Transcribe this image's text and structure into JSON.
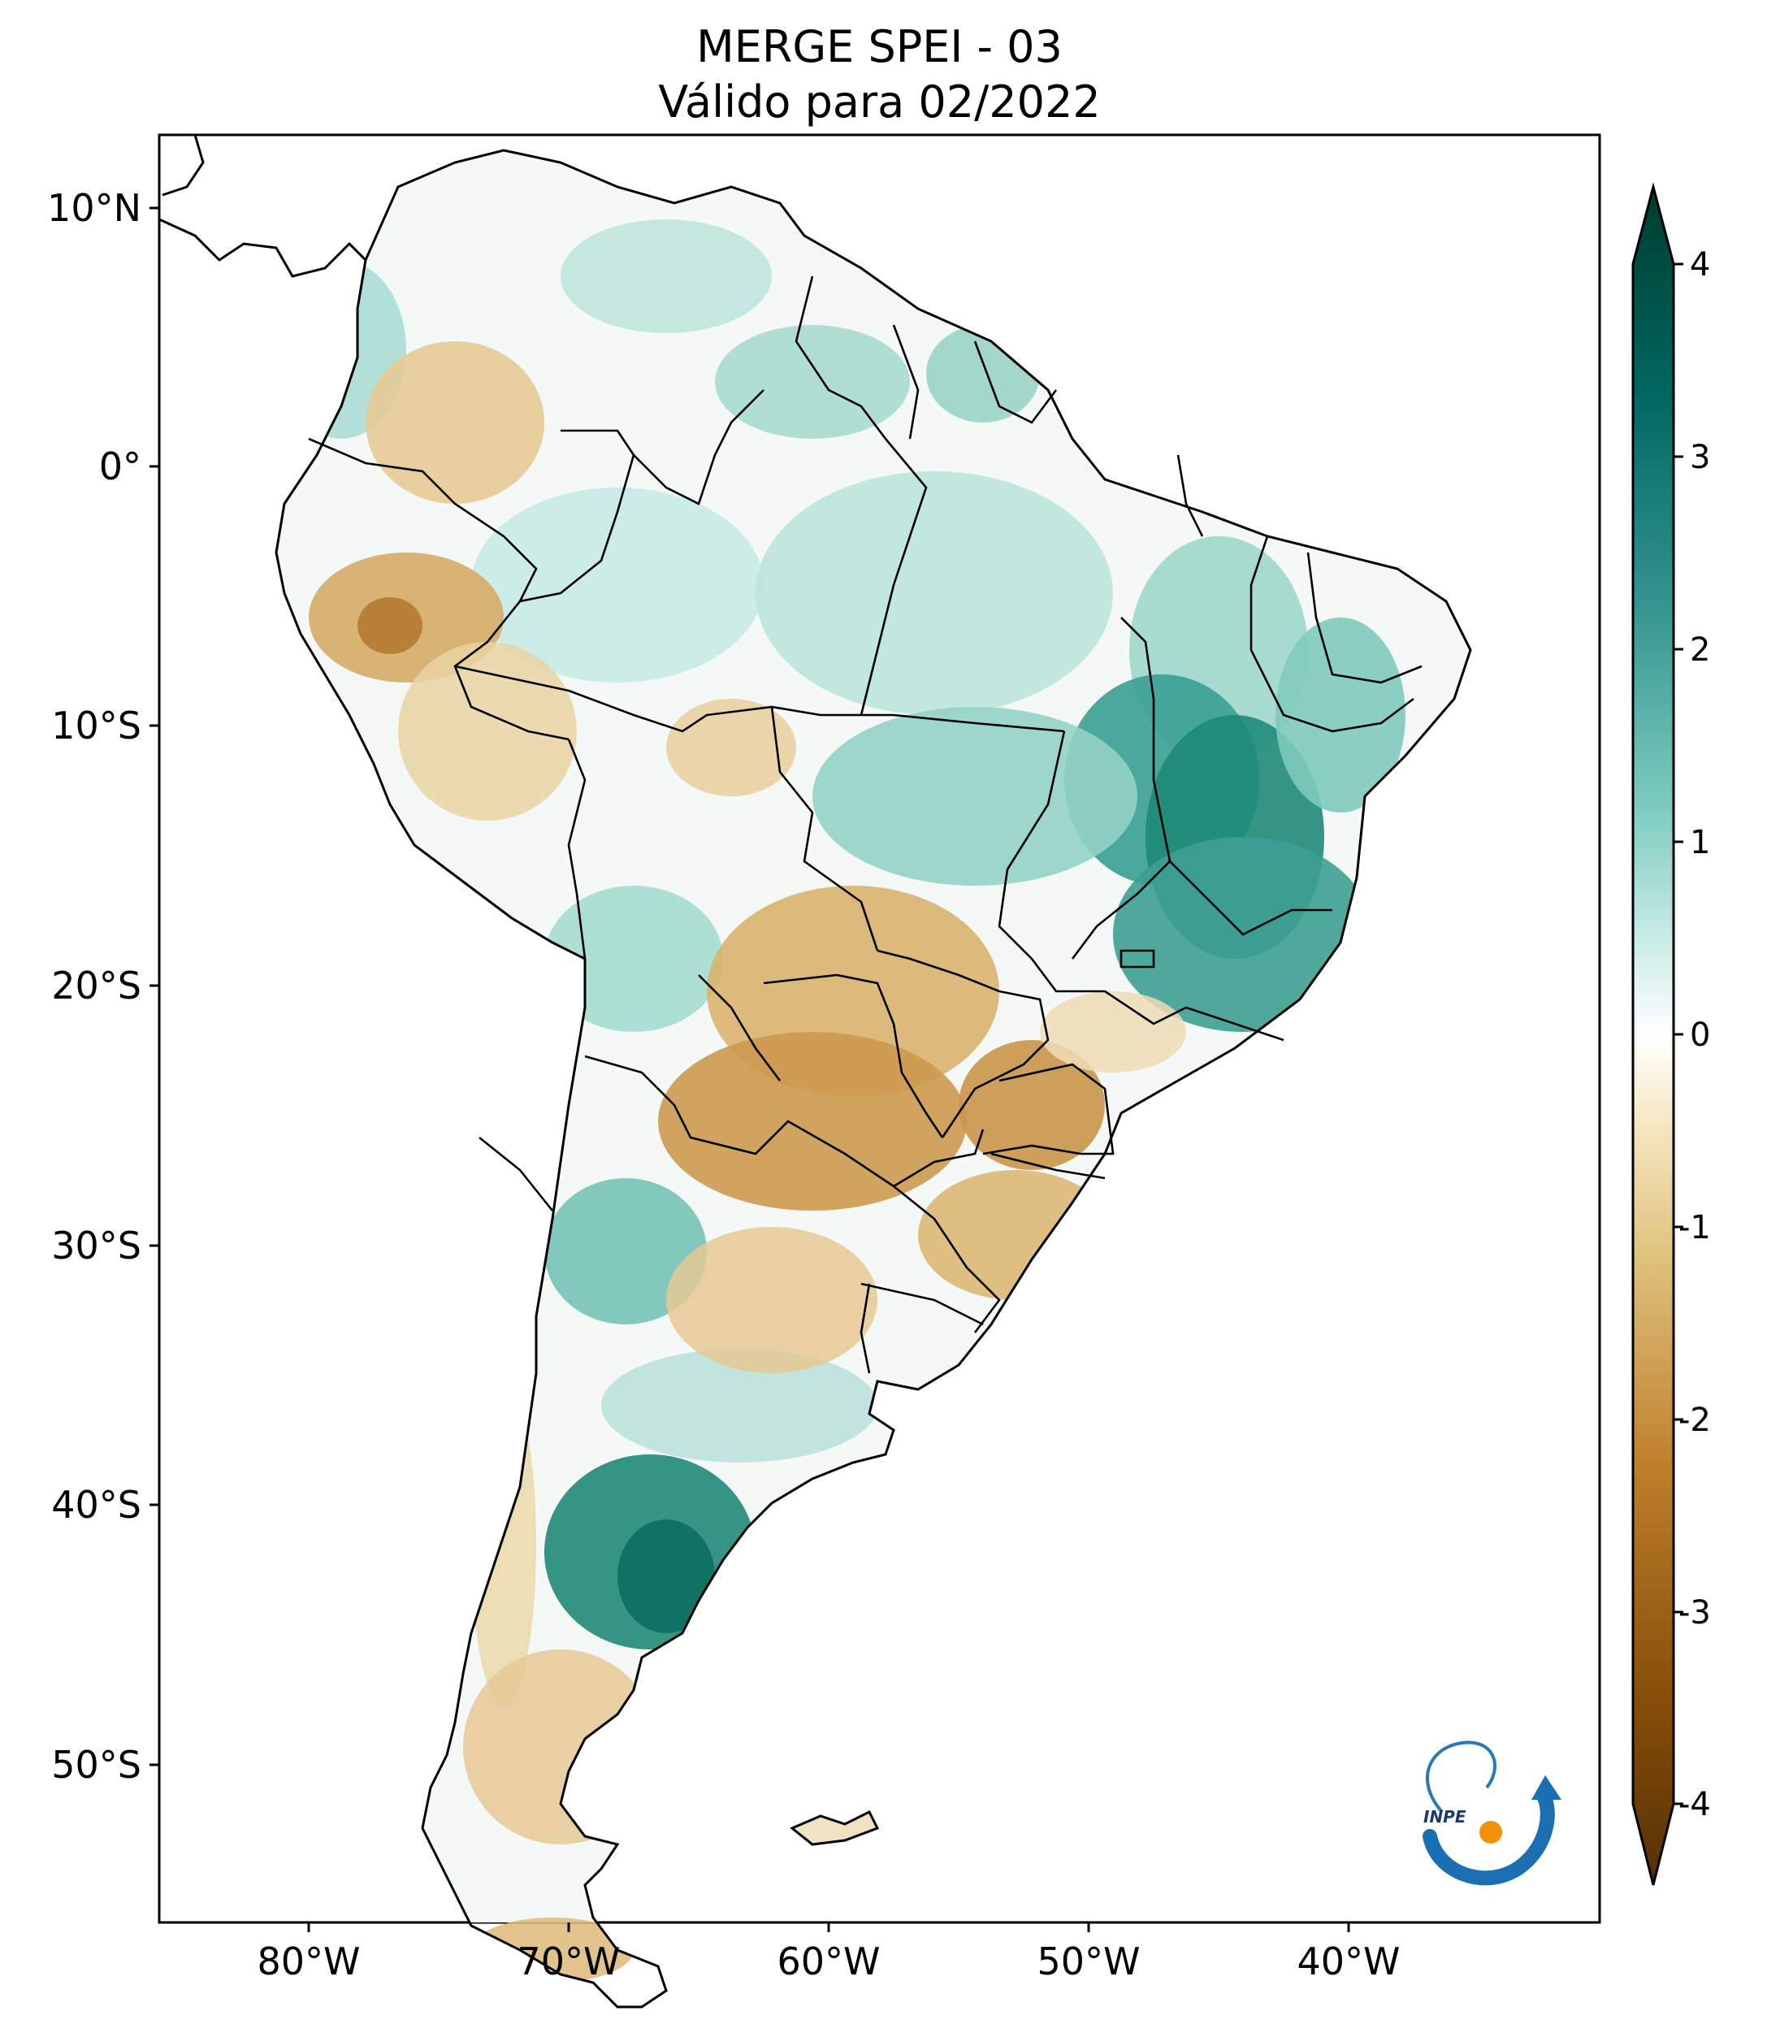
{
  "title": {
    "line1": "MERGE   SPEI - 03",
    "line2": "Válido para 02/2022"
  },
  "axes": {
    "lat_ticks": [
      "10°N",
      "0°",
      "10°S",
      "20°S",
      "30°S",
      "40°S",
      "50°S"
    ],
    "lon_ticks": [
      "80°W",
      "70°W",
      "60°W",
      "50°W",
      "40°W"
    ]
  },
  "colorbar": {
    "ticks": [
      "4",
      "3",
      "2",
      "1",
      "0",
      "-1",
      "-2",
      "-3",
      "-4"
    ],
    "range": [
      -4,
      4
    ],
    "colors": [
      "#543005",
      "#8c510a",
      "#bf812d",
      "#dfc27d",
      "#f6e8c3",
      "#ffffff",
      "#c7eae5",
      "#80cdc1",
      "#35978f",
      "#01665e",
      "#003c30"
    ]
  },
  "logo": {
    "text": "INPE"
  },
  "palette": {
    "dry": "#c28a3a",
    "wet": "#1f8a78"
  }
}
